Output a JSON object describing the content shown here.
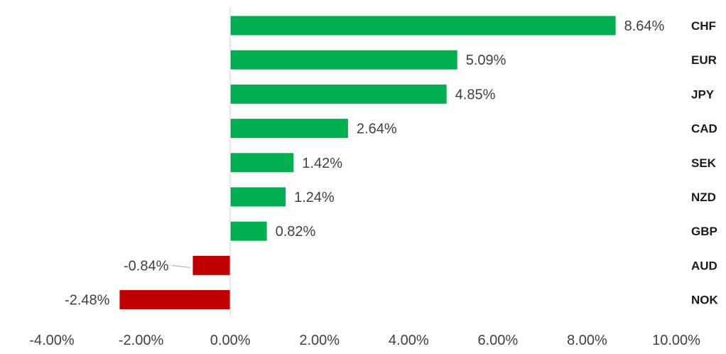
{
  "chart_data": {
    "type": "bar",
    "orientation": "horizontal",
    "categories": [
      "CHF",
      "EUR",
      "JPY",
      "CAD",
      "SEK",
      "NZD",
      "GBP",
      "AUD",
      "NOK"
    ],
    "values": [
      8.64,
      5.09,
      4.85,
      2.64,
      1.42,
      1.24,
      0.82,
      -0.84,
      -2.48
    ],
    "value_labels": [
      "8.64%",
      "5.09%",
      "4.85%",
      "2.64%",
      "1.42%",
      "1.24%",
      "0.82%",
      "-0.84%",
      "-2.48%"
    ],
    "x_tick_labels": [
      "-4.00%",
      "-2.00%",
      "0.00%",
      "2.00%",
      "4.00%",
      "6.00%",
      "8.00%",
      "10.00%"
    ],
    "x_ticks": [
      -4,
      -2,
      0,
      2,
      4,
      6,
      8,
      10
    ],
    "xlim": [
      -4,
      10
    ],
    "title": "",
    "xlabel": "",
    "ylabel": "",
    "grid": false,
    "legend": "none",
    "category_label_position": "right",
    "colors": {
      "positive": "#00b050",
      "negative": "#c00000",
      "zero_line": "#d9d9d9",
      "value_text": "#404040",
      "category_text": "#1a1a1a"
    }
  }
}
